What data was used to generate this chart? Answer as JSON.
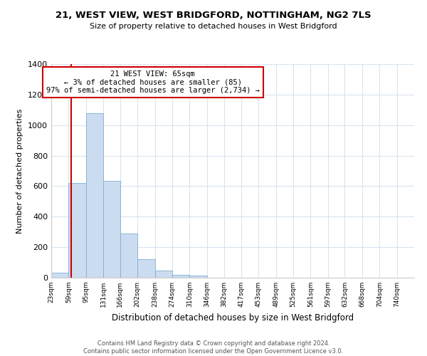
{
  "title": "21, WEST VIEW, WEST BRIDGFORD, NOTTINGHAM, NG2 7LS",
  "subtitle": "Size of property relative to detached houses in West Bridgford",
  "xlabel": "Distribution of detached houses by size in West Bridgford",
  "ylabel": "Number of detached properties",
  "bar_color": "#ccdcf0",
  "bar_edge_color": "#7bafd4",
  "bin_labels": [
    "23sqm",
    "59sqm",
    "95sqm",
    "131sqm",
    "166sqm",
    "202sqm",
    "238sqm",
    "274sqm",
    "310sqm",
    "346sqm",
    "382sqm",
    "417sqm",
    "453sqm",
    "489sqm",
    "525sqm",
    "561sqm",
    "597sqm",
    "632sqm",
    "668sqm",
    "704sqm",
    "740sqm"
  ],
  "bar_heights": [
    35,
    620,
    1080,
    635,
    290,
    120,
    48,
    20,
    15,
    0,
    0,
    0,
    0,
    0,
    0,
    0,
    0,
    0,
    0,
    0,
    0
  ],
  "ylim": [
    0,
    1400
  ],
  "yticks": [
    0,
    200,
    400,
    600,
    800,
    1000,
    1200,
    1400
  ],
  "property_line_x": 65,
  "property_line_label": "21 WEST VIEW: 65sqm",
  "annotation_line1": "← 3% of detached houses are smaller (85)",
  "annotation_line2": "97% of semi-detached houses are larger (2,734) →",
  "annotation_box_color": "#ffffff",
  "annotation_box_edge": "#cc0000",
  "property_line_color": "#cc0000",
  "background_color": "#ffffff",
  "grid_color": "#d8e4f0",
  "footer_line1": "Contains HM Land Registry data © Crown copyright and database right 2024.",
  "footer_line2": "Contains public sector information licensed under the Open Government Licence v3.0.",
  "bin_edges": [
    23,
    59,
    95,
    131,
    166,
    202,
    238,
    274,
    310,
    346,
    382,
    417,
    453,
    489,
    525,
    561,
    597,
    632,
    668,
    704,
    740
  ]
}
